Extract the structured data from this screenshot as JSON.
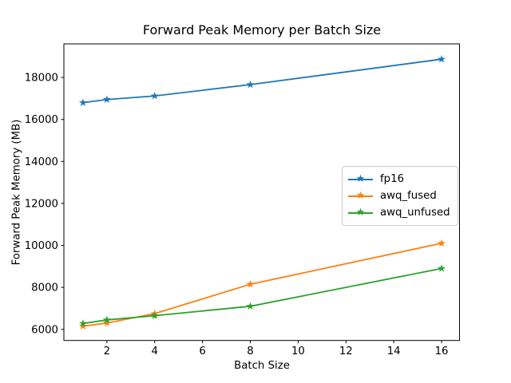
{
  "chart_data": {
    "type": "line",
    "title": "Forward Peak Memory per Batch Size",
    "xlabel": "Batch Size",
    "ylabel": "Forward Peak Memory (MB)",
    "x": [
      1,
      2,
      4,
      8,
      16
    ],
    "series": [
      {
        "name": "fp16",
        "color": "#1f77b4",
        "values": [
          16800,
          16950,
          17120,
          17660,
          18870
        ]
      },
      {
        "name": "awq_fused",
        "color": "#ff7f0e",
        "values": [
          6150,
          6300,
          6750,
          8150,
          10100
        ]
      },
      {
        "name": "awq_unfused",
        "color": "#2ca02c",
        "values": [
          6280,
          6450,
          6650,
          7100,
          8900
        ]
      }
    ],
    "marker": "star",
    "line_width": 1.8,
    "xticks": [
      2,
      4,
      6,
      8,
      10,
      12,
      14,
      16
    ],
    "yticks": [
      6000,
      8000,
      10000,
      12000,
      14000,
      16000,
      18000
    ],
    "xlim": [
      0.2,
      16.75
    ],
    "ylim": [
      5470,
      19600
    ],
    "grid": false,
    "legend": {
      "position": "center-right",
      "entries": [
        "fp16",
        "awq_fused",
        "awq_unfused"
      ]
    }
  },
  "colors": {
    "background": "#ffffff",
    "text": "#000000",
    "spine": "#000000",
    "legend_border": "#cccccc"
  }
}
